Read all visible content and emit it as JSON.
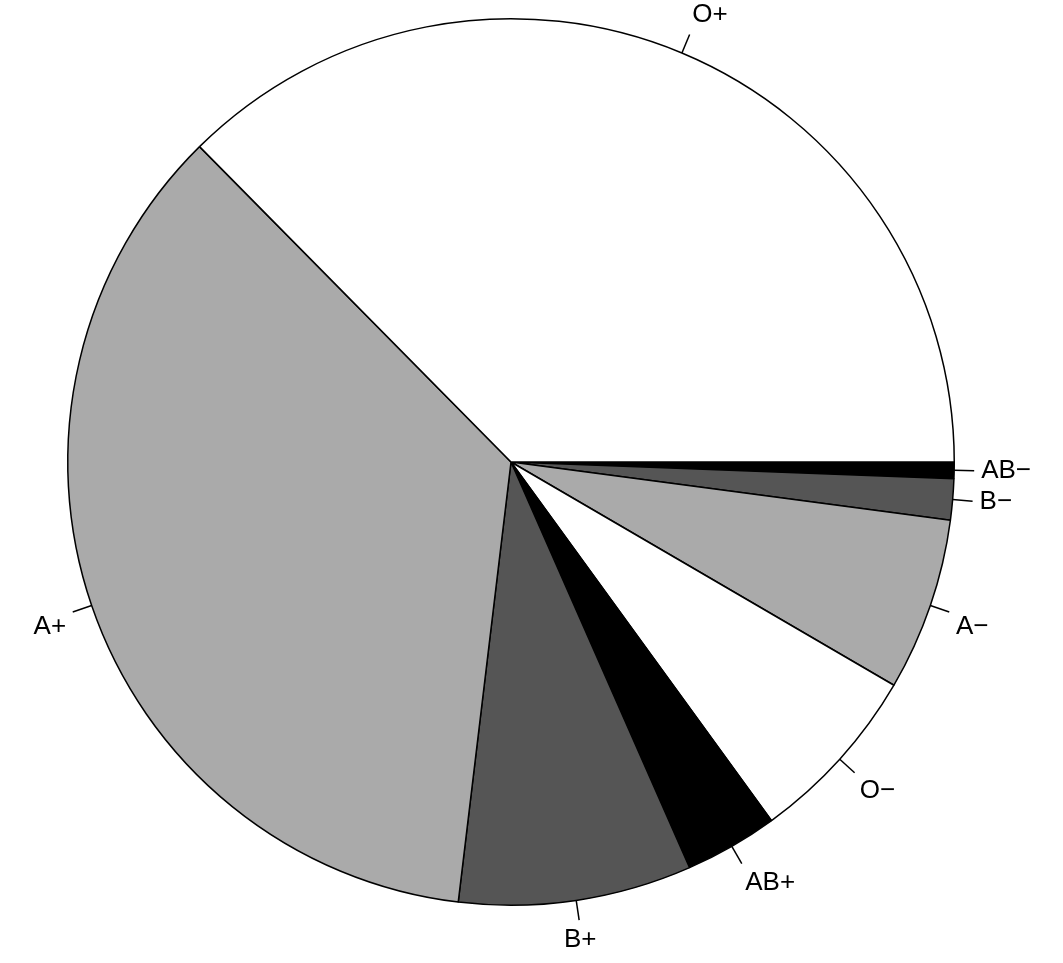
{
  "chart_data": {
    "type": "pie",
    "categories": [
      "O+",
      "A+",
      "B+",
      "AB+",
      "O−",
      "A−",
      "B−",
      "AB−"
    ],
    "values": [
      37.4,
      35.7,
      8.5,
      3.4,
      6.6,
      6.3,
      1.5,
      0.6
    ],
    "colors": [
      "#ffffff",
      "#aaaaaa",
      "#555555",
      "#000000",
      "#ffffff",
      "#aaaaaa",
      "#555555",
      "#000000"
    ]
  }
}
